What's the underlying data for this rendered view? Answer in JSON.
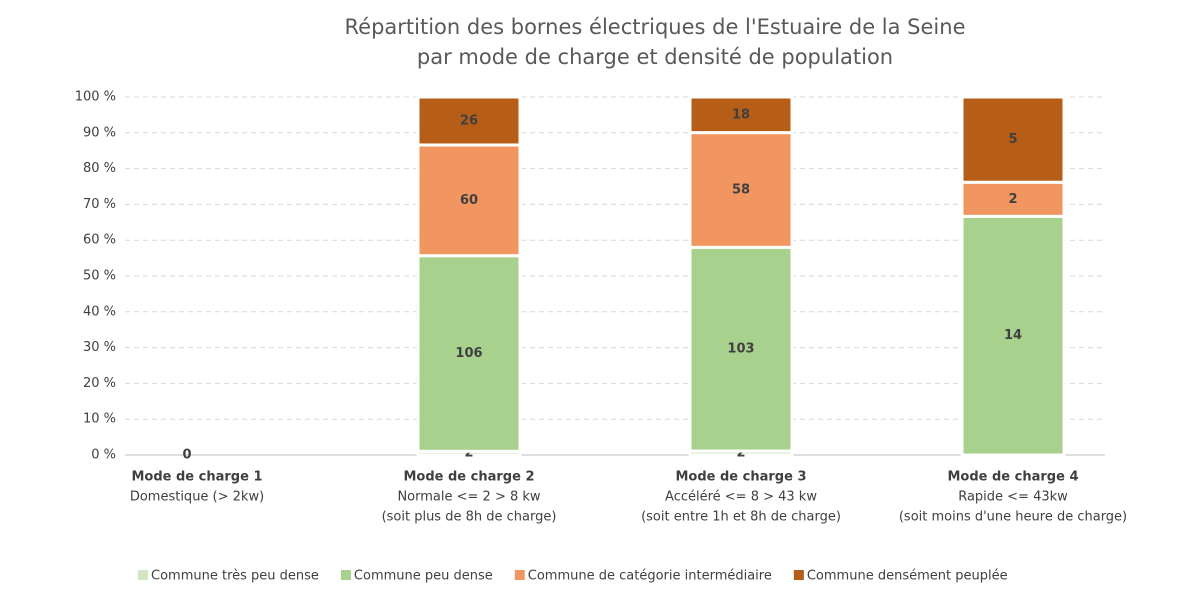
{
  "chart_data": {
    "type": "bar",
    "stacking": "percent",
    "title": [
      "Répartition des bornes électriques de l'Estuaire de la Seine",
      "par mode de charge et densité de population"
    ],
    "categories": [
      "Mode de charge 1",
      "Mode de charge 2",
      "Mode de charge 3",
      "Mode de charge 4"
    ],
    "category_descriptions": [
      [
        "Domestique (> 2kw)"
      ],
      [
        "Normale <= 2 > 8 kw",
        "(soit plus de 8h de charge)"
      ],
      [
        "Accéléré <= 8 > 43 kw",
        "(soit entre 1h et 8h de charge)"
      ],
      [
        "Rapide <= 43kw",
        "(soit moins d'une heure de charge)"
      ]
    ],
    "series": [
      {
        "name": "Commune très peu dense",
        "color": "#d3e6c4",
        "values": [
          0,
          2,
          2,
          null
        ]
      },
      {
        "name": "Commune peu dense",
        "color": "#a9d18e",
        "values": [
          null,
          106,
          103,
          14
        ]
      },
      {
        "name": "Commune de catégorie intermédiaire",
        "color": "#f19660",
        "values": [
          null,
          60,
          58,
          2
        ]
      },
      {
        "name": "Commune densément peuplée",
        "color": "#b65e17",
        "values": [
          null,
          26,
          18,
          5
        ]
      }
    ],
    "ylim": [
      0,
      100
    ],
    "yticks": [
      {
        "value": 0,
        "label": "0 %"
      },
      {
        "value": 10,
        "label": "10 %"
      },
      {
        "value": 20,
        "label": "20 %"
      },
      {
        "value": 30,
        "label": "30 %"
      },
      {
        "value": 40,
        "label": "40 %"
      },
      {
        "value": 50,
        "label": "50 %"
      },
      {
        "value": 60,
        "label": "60 %"
      },
      {
        "value": 70,
        "label": "70 %"
      },
      {
        "value": 80,
        "label": "80 %"
      },
      {
        "value": 90,
        "label": "90 %"
      },
      {
        "value": 100,
        "label": "100 %"
      }
    ],
    "grid": true,
    "legend": "bottom"
  }
}
